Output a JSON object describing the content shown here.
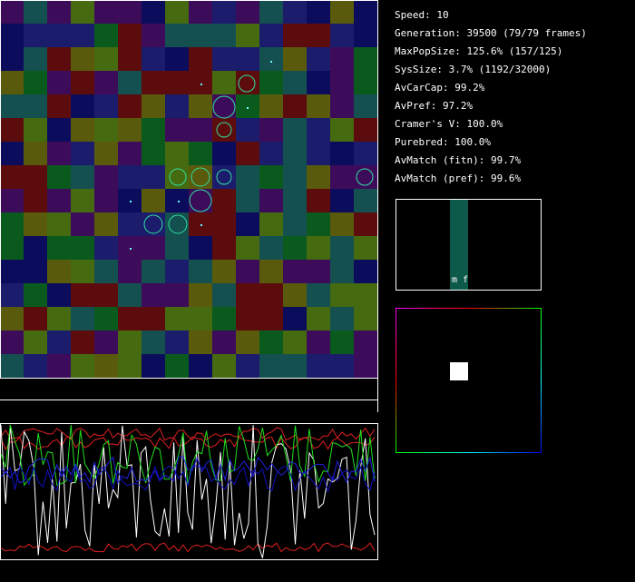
{
  "stats": [
    "Speed: 10",
    "Generation: 39500 (79/79 frames)",
    "MaxPopSize: 125.6% (157/125)",
    "SysSize: 3.7% (1192/32000)",
    "AvCarCap: 99.2%",
    "AvPref: 97.2%",
    "Cramer's V: 100.0%",
    "Purebred: 100.0%",
    "AvMatch (fitn): 99.7%",
    "AvMatch (pref): 99.6%"
  ],
  "histogram_label": "m f"
}
